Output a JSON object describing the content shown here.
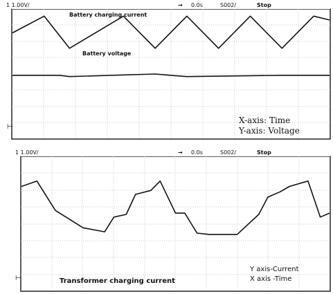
{
  "chart_data": [
    {
      "type": "line",
      "header": {
        "scale": "1 1.00V/",
        "time_offset": "0.0s",
        "timebase": "S002/",
        "run_state": "Stop"
      },
      "series": [
        {
          "name": "Battery charging current",
          "x": [
            0.0,
            0.1,
            0.18,
            0.35,
            0.45,
            0.55,
            0.65,
            0.75,
            0.85,
            0.95,
            1.0
          ],
          "y": [
            0.82,
            0.95,
            0.7,
            0.95,
            0.7,
            0.95,
            0.7,
            0.95,
            0.7,
            0.95,
            0.92
          ]
        },
        {
          "name": "Battery voltage",
          "x": [
            0.0,
            0.15,
            0.18,
            0.45,
            0.5,
            0.55,
            0.85,
            0.95,
            1.0
          ],
          "y": [
            0.49,
            0.49,
            0.48,
            0.5,
            0.49,
            0.48,
            0.49,
            0.49,
            0.49
          ]
        }
      ],
      "annotations": [
        "X-axis: Time",
        "Y-axis: Voltage"
      ]
    },
    {
      "type": "line",
      "header": {
        "scale": "1 1.00V/",
        "time_offset": "0.0s",
        "timebase": "S002/",
        "run_state": "Stop"
      },
      "series": [
        {
          "name": "Transformer charging current",
          "x": [
            0.0,
            0.05,
            0.11,
            0.2,
            0.27,
            0.3,
            0.34,
            0.37,
            0.42,
            0.45,
            0.5,
            0.53,
            0.57,
            0.61,
            0.7,
            0.77,
            0.8,
            0.84,
            0.87,
            0.93,
            0.97,
            1.0
          ],
          "y": [
            0.78,
            0.82,
            0.6,
            0.47,
            0.44,
            0.55,
            0.57,
            0.72,
            0.75,
            0.82,
            0.58,
            0.58,
            0.43,
            0.42,
            0.42,
            0.57,
            0.7,
            0.74,
            0.78,
            0.82,
            0.55,
            0.58
          ]
        }
      ],
      "annotations": [
        "Transformer charging current",
        "Y axis-Current",
        "X axis -Time"
      ]
    }
  ]
}
